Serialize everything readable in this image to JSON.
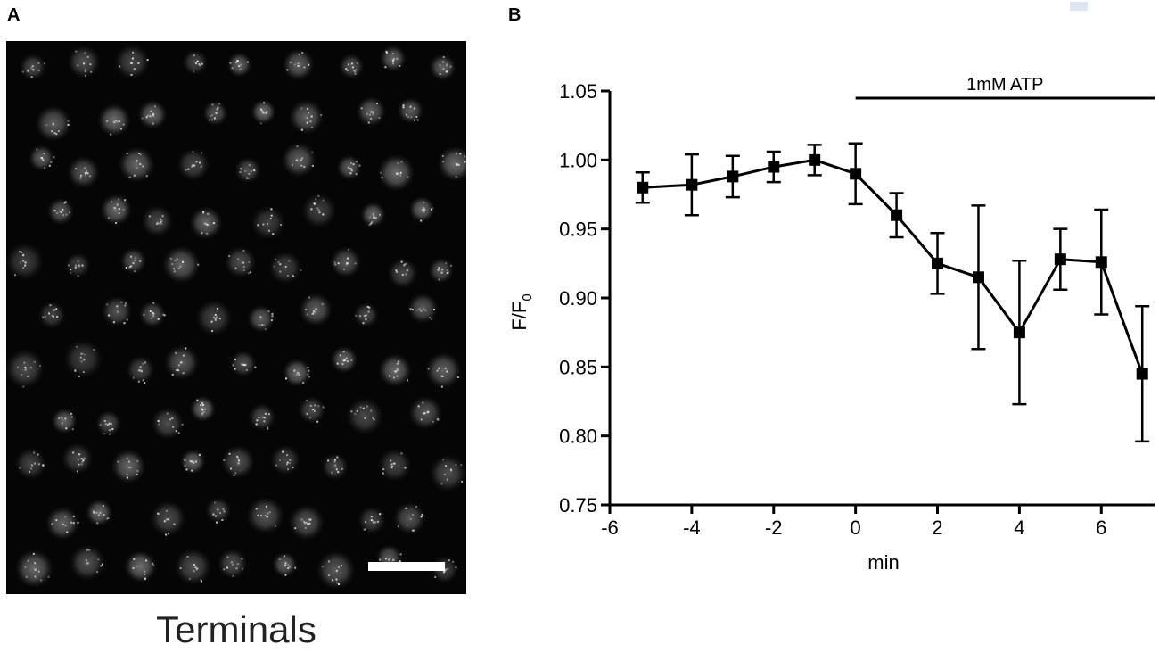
{
  "panel_a": {
    "letter": "A",
    "caption": "Terminals"
  },
  "panel_b": {
    "letter": "B"
  },
  "chart_data": {
    "type": "line",
    "xlabel": "min",
    "ylabel": "F/F",
    "ylabel_subscript": "0",
    "xlim": [
      -6,
      7.3
    ],
    "ylim": [
      0.75,
      1.05
    ],
    "x_ticks": [
      -6,
      -4,
      -2,
      0,
      2,
      4,
      6
    ],
    "x_tick_labels": [
      "-6",
      "-4",
      "-2",
      "0",
      "2",
      "4",
      "6"
    ],
    "y_ticks": [
      0.75,
      0.8,
      0.85,
      0.9,
      0.95,
      1.0,
      1.05
    ],
    "y_tick_labels": [
      "0.75",
      "0.80",
      "0.85",
      "0.90",
      "0.95",
      "1.00",
      "1.05"
    ],
    "series": [
      {
        "x": [
          -5.2,
          -4,
          -3,
          -2,
          -1,
          0,
          1,
          2,
          3,
          4,
          5,
          6,
          7
        ],
        "y": [
          0.98,
          0.982,
          0.988,
          0.995,
          1.0,
          0.99,
          0.96,
          0.925,
          0.915,
          0.875,
          0.928,
          0.926,
          0.845
        ],
        "error": [
          0.011,
          0.022,
          0.015,
          0.011,
          0.011,
          0.022,
          0.016,
          0.022,
          0.052,
          0.052,
          0.022,
          0.038,
          0.049
        ]
      }
    ],
    "annotations": [
      {
        "text": "1mM ATP",
        "x_start": 0,
        "x_end": 7.3
      }
    ]
  }
}
